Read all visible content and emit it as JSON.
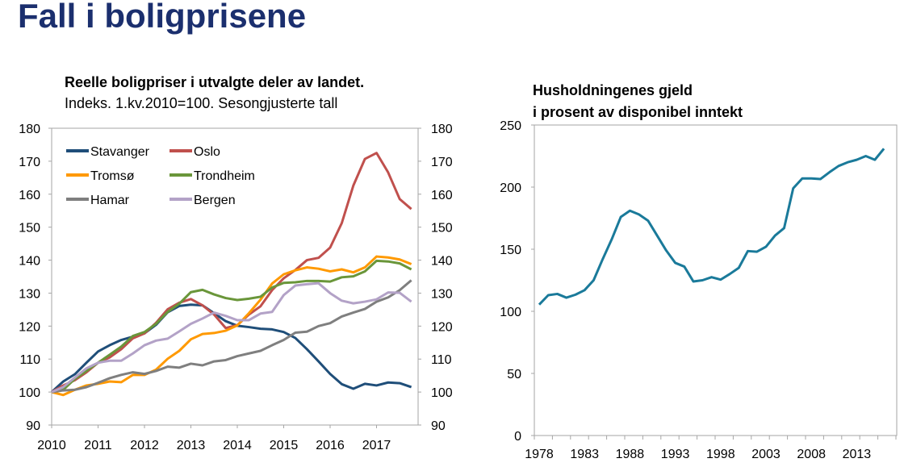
{
  "title": "Fall i boligprisene",
  "chart_data": [
    {
      "type": "line",
      "title": "Reelle boligpriser i utvalgte deler av landet.",
      "subtitle": "Indeks. 1.kv.2010=100. Sesongjusterte tall",
      "x_frequency": "quarterly",
      "x_start": "2010Q1",
      "x_tick_labels": [
        "2010",
        "2011",
        "2012",
        "2013",
        "2014",
        "2015",
        "2016",
        "2017"
      ],
      "y_tick_labels": [
        "90",
        "100",
        "110",
        "120",
        "130",
        "140",
        "150",
        "160",
        "170",
        "180"
      ],
      "ylim": [
        90,
        180
      ],
      "dual_y_axis": true,
      "legend": "top-left",
      "grid": false,
      "series": [
        {
          "name": "Stavanger",
          "color": "#1f4e79",
          "values": [
            100,
            103.2,
            105.4,
            108.9,
            112.3,
            114.2,
            115.8,
            116.8,
            117.8,
            120.4,
            124.2,
            126.1,
            126.5,
            126.3,
            123.9,
            121.5,
            120.1,
            119.7,
            119.2,
            119,
            118.2,
            116.4,
            113,
            109.3,
            105.5,
            102.4,
            101,
            102.5,
            102,
            102.9,
            102.7,
            101.5
          ]
        },
        {
          "name": "Oslo",
          "color": "#c0504d",
          "values": [
            100,
            102,
            103.6,
            106,
            108.9,
            110.5,
            113,
            116.3,
            117.8,
            121,
            125.1,
            127.1,
            128.2,
            126.3,
            123.5,
            119.4,
            120.3,
            123.5,
            126,
            130.9,
            134.5,
            137,
            140,
            140.7,
            143.8,
            151.2,
            162.6,
            170.7,
            172.5,
            166.6,
            158.5,
            155.5
          ]
        },
        {
          "name": "Tromsø",
          "color": "#ff9900",
          "values": [
            100,
            99.1,
            100.7,
            102,
            102.5,
            103.2,
            103,
            105.2,
            105.2,
            106.8,
            110.1,
            112.5,
            116,
            117.6,
            117.9,
            118.6,
            120.2,
            123.9,
            128,
            132.9,
            135.7,
            136.9,
            137.8,
            137.4,
            136.6,
            137.2,
            136.3,
            137.8,
            141.1,
            140.8,
            140.2,
            138.8
          ]
        },
        {
          "name": "Trondheim",
          "color": "#6a963a",
          "values": [
            100,
            100.7,
            104,
            106.4,
            108.9,
            111.3,
            113.8,
            117,
            118.2,
            120.7,
            124.3,
            126.8,
            130.3,
            131,
            129.6,
            128.5,
            127.9,
            128.3,
            128.9,
            131.7,
            133.1,
            133.3,
            133.7,
            133.7,
            133.5,
            134.8,
            135.1,
            136.6,
            139.8,
            139.6,
            139,
            137.2
          ]
        },
        {
          "name": "Hamar",
          "color": "#7f7f7f",
          "values": [
            100,
            100.5,
            100.7,
            101.5,
            102.8,
            104.2,
            105.2,
            106,
            105.5,
            106.4,
            107.7,
            107.4,
            108.6,
            108.1,
            109.3,
            109.7,
            110.9,
            111.7,
            112.5,
            114.2,
            115.8,
            118,
            118.3,
            120,
            120.9,
            122.9,
            124.1,
            125.2,
            127.4,
            128.7,
            130.9,
            133.9
          ]
        },
        {
          "name": "Bergen",
          "color": "#b3a2c7",
          "values": [
            100,
            101.5,
            104.4,
            107.2,
            108.9,
            109.5,
            109.5,
            111.7,
            114.2,
            115.6,
            116.2,
            118.4,
            120.7,
            122.3,
            124.1,
            123.1,
            121.8,
            121.8,
            123.8,
            124.3,
            129.4,
            132.3,
            132.7,
            133,
            130,
            127.7,
            126.9,
            127.4,
            128.1,
            130.2,
            130.1,
            127.4
          ]
        }
      ]
    },
    {
      "type": "line",
      "title_lines": [
        "Husholdningenes gjeld",
        "i prosent av disponibel inntekt"
      ],
      "x": [
        1978,
        1979,
        1980,
        1981,
        1982,
        1983,
        1984,
        1985,
        1986,
        1987,
        1988,
        1989,
        1990,
        1991,
        1992,
        1993,
        1994,
        1995,
        1996,
        1997,
        1998,
        1999,
        2000,
        2001,
        2002,
        2003,
        2004,
        2005,
        2006,
        2007,
        2008,
        2009,
        2010,
        2011,
        2012,
        2013,
        2014,
        2015,
        2016
      ],
      "x_tick_labels": [
        "1978",
        "1983",
        "1988",
        "1993",
        "1998",
        "2003",
        "2008",
        "2013"
      ],
      "y_tick_labels": [
        "0",
        "50",
        "100",
        "150",
        "200",
        "250"
      ],
      "ylim": [
        0,
        250
      ],
      "grid": false,
      "color": "#1a7a9a",
      "series": [
        {
          "values": [
            105.4,
            113,
            114,
            111,
            113.4,
            117,
            125,
            142,
            158,
            176,
            181,
            178,
            173,
            161,
            149,
            139,
            136,
            124,
            125,
            127.5,
            125.5,
            130,
            135,
            148.5,
            148,
            152,
            161,
            167,
            199,
            207,
            207,
            206.5,
            212,
            217,
            220,
            222,
            225,
            222,
            231
          ]
        }
      ]
    }
  ]
}
